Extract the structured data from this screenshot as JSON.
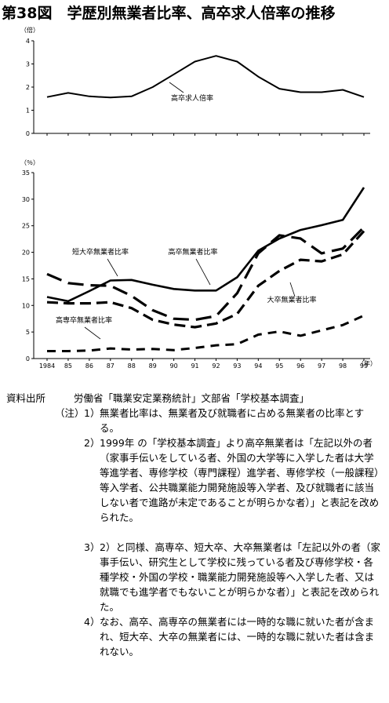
{
  "title": "第38図　学歴別無業者比率、高卒求人倍率の推移",
  "chart_data": [
    {
      "type": "line",
      "ylabel": "（倍）",
      "ylim": [
        0,
        4
      ],
      "yticks": [
        "0",
        "1",
        "2",
        "3",
        "4"
      ],
      "grid": false,
      "x": [
        1984,
        1985,
        1986,
        1987,
        1988,
        1989,
        1990,
        1991,
        1992,
        1993,
        1994,
        1995,
        1996,
        1997,
        1998,
        1999
      ],
      "series": [
        {
          "name": "高卒求人倍率",
          "style": "solid",
          "values": [
            1.57,
            1.75,
            1.6,
            1.55,
            1.6,
            2.0,
            2.55,
            3.1,
            3.35,
            3.1,
            2.45,
            1.93,
            1.78,
            1.78,
            1.88,
            1.57
          ]
        }
      ],
      "annotations": [
        "高卒求人倍率"
      ]
    },
    {
      "type": "line",
      "ylabel": "（％）",
      "xlabel": "（年）",
      "ylim": [
        0,
        35
      ],
      "yticks": [
        "0",
        "5",
        "10",
        "15",
        "20",
        "25",
        "30",
        "35"
      ],
      "xticklabels": [
        "1984",
        "85",
        "86",
        "87",
        "88",
        "89",
        "90",
        "91",
        "92",
        "93",
        "94",
        "95",
        "96",
        "97",
        "98",
        "99"
      ],
      "grid": false,
      "x": [
        1984,
        1985,
        1986,
        1987,
        1988,
        1989,
        1990,
        1991,
        1992,
        1993,
        1994,
        1995,
        1996,
        1997,
        1998,
        1999
      ],
      "series": [
        {
          "name": "高卒無業者比率",
          "style": "solid",
          "values": [
            11.6,
            10.8,
            12.7,
            14.7,
            14.8,
            13.9,
            13.1,
            12.8,
            12.8,
            15.3,
            20.3,
            22.6,
            24.2,
            25.1,
            26.1,
            32.2
          ]
        },
        {
          "name": "短大卒無業者比率",
          "style": "longdash",
          "values": [
            15.9,
            14.2,
            13.8,
            13.7,
            11.8,
            9.1,
            7.5,
            7.3,
            8.0,
            12.3,
            19.8,
            23.2,
            22.6,
            19.8,
            20.7,
            24.7
          ]
        },
        {
          "name": "大卒無業者比率",
          "style": "medium-dash",
          "values": [
            10.6,
            10.4,
            10.4,
            10.6,
            9.5,
            7.3,
            6.4,
            5.9,
            6.6,
            8.4,
            13.7,
            16.5,
            18.6,
            18.3,
            19.6,
            24.0
          ]
        },
        {
          "name": "高専卒無業者比率",
          "style": "dash",
          "values": [
            1.4,
            1.4,
            1.5,
            1.9,
            1.7,
            1.8,
            1.6,
            2.0,
            2.5,
            2.7,
            4.5,
            5.1,
            4.3,
            5.3,
            6.3,
            8.1
          ]
        }
      ],
      "annotations": [
        "短大卒無業者比率",
        "高卒無業者比率",
        "大卒無業者比率",
        "高専卒無業者比率"
      ]
    }
  ],
  "notes": {
    "source_label": "資料出所",
    "source_text": "労働省「職業安定業務統計」文部省「学校基本調査」",
    "note_head": "（注）",
    "items": [
      {
        "num": "1）",
        "text": "無業者比率は、無業者及び就職者に占める無業者の比率とする。"
      },
      {
        "num": "2）",
        "text": "1999年 の「学校基本調査」より高卒無業者は「左記以外の者（家事手伝いをしている者、外国の大学等に入学した者は大学等進学者、専修学校（専門課程）進学者、専修学校（一般課程）等入学者、公共職業能力開発施設等入学者、及び就職者に該当しない者で進路が未定であることが明らかな者）」と表記を改められた。"
      },
      {
        "num": "3）",
        "text": "2）と同様、高専卒、短大卒、大卒無業者は「左記以外の者（家事手伝い、研究生として学校に残っている者及び専修学校・各種学校・外国の学校・職業能力開発施設等へ入学した者、又は就職でも進学者でもないことが明らかな者）」と表記を改められた。"
      },
      {
        "num": "4）",
        "text": "なお、高卒、高専卒の無業者には一時的な職に就いた者が含まれ、短大卒、大卒の無業者には、一時的な職に就いた者は含まれない。"
      }
    ]
  }
}
